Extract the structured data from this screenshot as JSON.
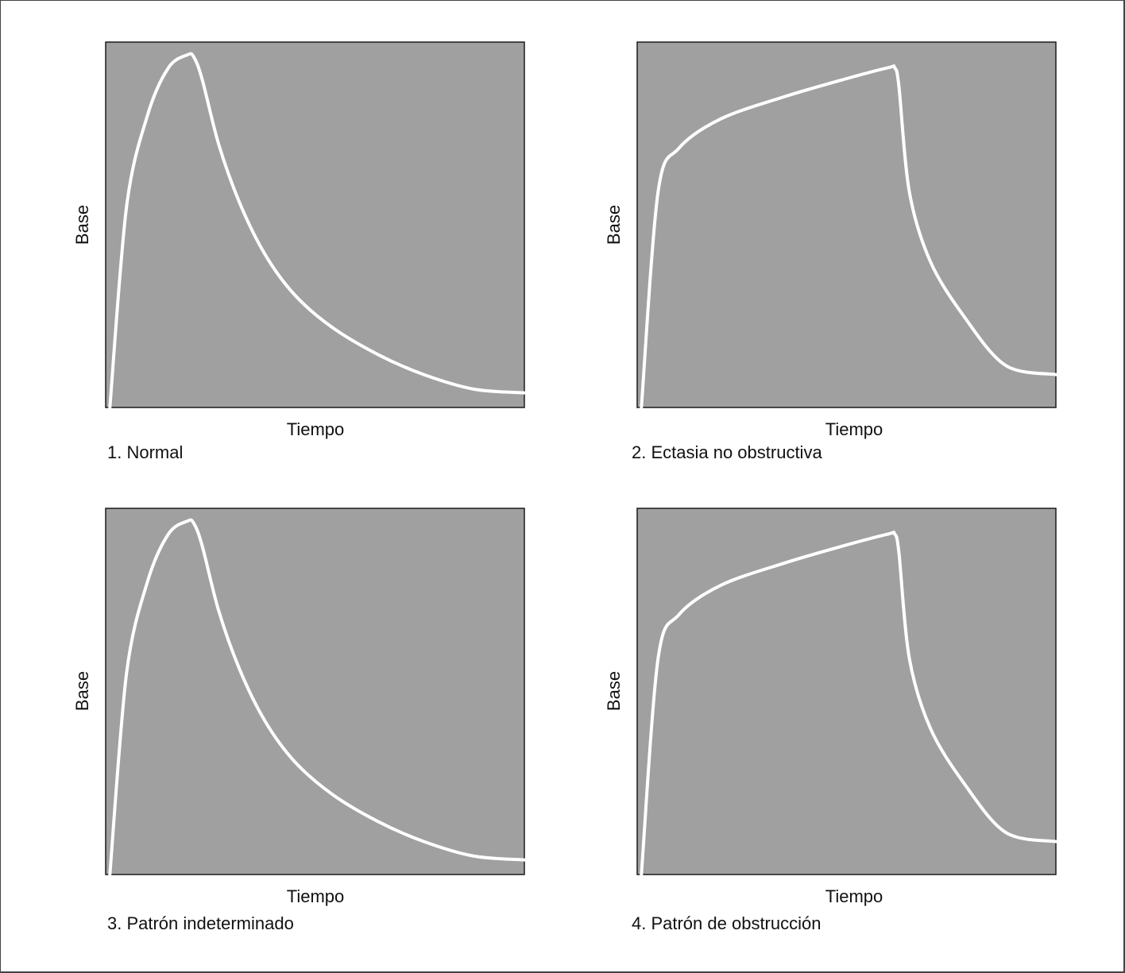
{
  "chart_data": [
    {
      "type": "line",
      "caption": "1. Normal",
      "xlabel": "Tiempo",
      "ylabel": "Base",
      "xlim": [
        0,
        100
      ],
      "ylim": [
        0,
        100
      ],
      "grid": false,
      "plot_background": "#a0a0a0",
      "line_color": "#ffffff",
      "series": [
        {
          "x": [
            1,
            5,
            10,
            15,
            19.5,
            21,
            23,
            27,
            32,
            38,
            45,
            54,
            65,
            76,
            88,
            100
          ],
          "y": [
            0,
            55,
            80,
            93,
            96.5,
            96,
            90,
            72,
            56,
            42,
            31,
            22,
            14.5,
            9,
            5,
            4
          ]
        }
      ]
    },
    {
      "type": "line",
      "caption": "2. Ectasia no obstructiva",
      "xlabel": "Tiempo",
      "ylabel": "Base",
      "xlim": [
        0,
        100
      ],
      "ylim": [
        0,
        100
      ],
      "grid": false,
      "plot_background": "#a0a0a0",
      "line_color": "#ffffff",
      "series": [
        {
          "x": [
            1,
            5,
            10,
            20,
            35,
            50,
            60,
            61.5,
            62.5,
            65,
            70,
            78,
            88,
            100
          ],
          "y": [
            0,
            59,
            71,
            79,
            85,
            90,
            93,
            93,
            88,
            59,
            40,
            25,
            11.5,
            9
          ]
        }
      ]
    },
    {
      "type": "line",
      "caption": "3. Patrón indeterminado",
      "xlabel": "Tiempo",
      "ylabel": "Base",
      "xlim": [
        0,
        100
      ],
      "ylim": [
        0,
        100
      ],
      "grid": false,
      "plot_background": "#a0a0a0",
      "line_color": "#ffffff",
      "series": [
        {
          "x": [
            1,
            5,
            10,
            15,
            19.5,
            21,
            23,
            27,
            32,
            38,
            45,
            54,
            65,
            76,
            88,
            100
          ],
          "y": [
            0,
            55,
            80,
            93,
            96.5,
            96,
            90,
            72,
            56,
            42,
            31,
            22,
            14.5,
            9,
            5,
            4
          ]
        }
      ]
    },
    {
      "type": "line",
      "caption": "4. Patrón de obstrucción",
      "xlabel": "Tiempo",
      "ylabel": "Base",
      "xlim": [
        0,
        100
      ],
      "ylim": [
        0,
        100
      ],
      "grid": false,
      "plot_background": "#a0a0a0",
      "line_color": "#ffffff",
      "series": [
        {
          "x": [
            1,
            5,
            10,
            20,
            35,
            50,
            60,
            61.5,
            62.5,
            65,
            70,
            78,
            88,
            100
          ],
          "y": [
            0,
            59,
            71,
            79,
            85,
            90,
            93,
            93,
            88,
            59,
            40,
            25,
            11.5,
            9
          ]
        }
      ]
    }
  ]
}
